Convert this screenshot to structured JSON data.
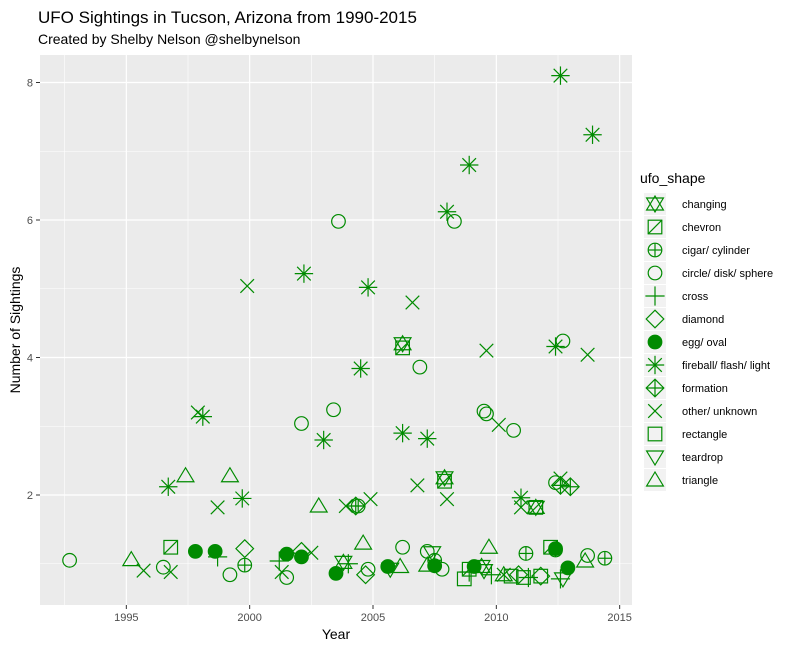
{
  "chart_data": {
    "type": "scatter",
    "title": "UFO Sightings in Tucson, Arizona from 1990-2015",
    "subtitle": "Created by Shelby Nelson @shelbynelson",
    "xlabel": "Year",
    "ylabel": "Number of Sightings",
    "xlim": [
      1991.5,
      2015.5
    ],
    "ylim": [
      0.4,
      8.4
    ],
    "x_ticks": [
      1995,
      2000,
      2005,
      2010,
      2015
    ],
    "y_ticks": [
      2,
      4,
      6,
      8
    ],
    "grid": true,
    "legend": {
      "title": "ufo_shape",
      "position": "right"
    },
    "marker_color": "#008B00",
    "panel_color": "#EBEBEB",
    "shapes": [
      "changing",
      "chevron",
      "cigar/ cylinder",
      "circle/ disk/ sphere",
      "cross",
      "diamond",
      "egg/ oval",
      "fireball/ flash/ light",
      "formation",
      "other/ unknown",
      "rectangle",
      "teardrop",
      "triangle"
    ],
    "series": [
      {
        "name": "changing",
        "points": [
          [
            2006.2,
            4.2
          ],
          [
            2007.9,
            2.25
          ],
          [
            2011.6,
            1.82
          ],
          [
            2003.8,
            1.02
          ],
          [
            2009.4,
            0.96
          ]
        ]
      },
      {
        "name": "chevron",
        "points": [
          [
            1996.8,
            1.24
          ],
          [
            2006.2,
            4.14
          ],
          [
            2007.9,
            2.2
          ],
          [
            2011.6,
            1.82
          ],
          [
            2012.2,
            1.24
          ],
          [
            2008.9,
            0.92
          ]
        ]
      },
      {
        "name": "cigar/ cylinder",
        "points": [
          [
            2004.4,
            1.84
          ],
          [
            2011.2,
            1.15
          ],
          [
            2012.4,
            1.2
          ],
          [
            2014.4,
            1.08
          ],
          [
            1999.8,
            0.98
          ],
          [
            2007.5,
            1.05
          ]
        ]
      },
      {
        "name": "circle/ disk/ sphere",
        "points": [
          [
            1992.7,
            1.05
          ],
          [
            1996.5,
            0.95
          ],
          [
            1999.2,
            0.84
          ],
          [
            2001.5,
            0.8
          ],
          [
            2002.1,
            3.04
          ],
          [
            2003.4,
            3.24
          ],
          [
            2003.6,
            5.98
          ],
          [
            2004.8,
            0.92
          ],
          [
            2006.2,
            1.24
          ],
          [
            2006.9,
            3.86
          ],
          [
            2007.2,
            1.18
          ],
          [
            2008.3,
            5.98
          ],
          [
            2009.5,
            3.22
          ],
          [
            2009.6,
            3.18
          ],
          [
            2010.7,
            2.94
          ],
          [
            2012.4,
            2.18
          ],
          [
            2012.7,
            4.24
          ],
          [
            2013.7,
            1.12
          ],
          [
            2007.8,
            0.92
          ]
        ]
      },
      {
        "name": "cross",
        "points": [
          [
            1998.7,
            1.1
          ],
          [
            2001.2,
            1.04
          ],
          [
            2004.0,
            1.0
          ],
          [
            2008.9,
            0.88
          ],
          [
            2009.8,
            0.84
          ],
          [
            2011.3,
            0.8
          ],
          [
            2012.6,
            0.78
          ]
        ]
      },
      {
        "name": "diamond",
        "points": [
          [
            1999.8,
            1.22
          ],
          [
            2004.7,
            0.84
          ],
          [
            2002.1,
            1.18
          ],
          [
            2010.9,
            0.84
          ],
          [
            2011.8,
            0.82
          ]
        ]
      },
      {
        "name": "egg/ oval",
        "points": [
          [
            1997.8,
            1.18
          ],
          [
            1998.6,
            1.18
          ],
          [
            2001.5,
            1.14
          ],
          [
            2002.1,
            1.1
          ],
          [
            2003.5,
            0.86
          ],
          [
            2005.6,
            0.96
          ],
          [
            2007.5,
            0.97
          ],
          [
            2009.1,
            0.96
          ],
          [
            2012.4,
            1.22
          ],
          [
            2012.9,
            0.94
          ]
        ]
      },
      {
        "name": "fireball/ flash/ light",
        "points": [
          [
            1996.7,
            2.12
          ],
          [
            1998.1,
            3.14
          ],
          [
            1999.7,
            1.95
          ],
          [
            2002.2,
            5.22
          ],
          [
            2003.0,
            2.8
          ],
          [
            2004.5,
            3.84
          ],
          [
            2004.8,
            5.02
          ],
          [
            2006.2,
            2.9
          ],
          [
            2007.2,
            2.82
          ],
          [
            2008.0,
            6.12
          ],
          [
            2008.9,
            6.8
          ],
          [
            2011.0,
            1.96
          ],
          [
            2012.4,
            4.16
          ],
          [
            2012.6,
            8.1
          ],
          [
            2013.9,
            7.24
          ]
        ]
      },
      {
        "name": "formation",
        "points": [
          [
            2004.3,
            1.84
          ],
          [
            2012.6,
            2.14
          ],
          [
            2013.0,
            2.12
          ]
        ]
      },
      {
        "name": "other/ unknown",
        "points": [
          [
            1995.7,
            0.9
          ],
          [
            1996.8,
            0.88
          ],
          [
            1997.9,
            3.2
          ],
          [
            1998.7,
            1.82
          ],
          [
            1999.9,
            5.04
          ],
          [
            2001.3,
            0.88
          ],
          [
            2002.5,
            1.16
          ],
          [
            2003.9,
            1.84
          ],
          [
            2004.9,
            1.94
          ],
          [
            2006.6,
            4.8
          ],
          [
            2006.8,
            2.14
          ],
          [
            2008.0,
            1.94
          ],
          [
            2009.6,
            4.1
          ],
          [
            2010.1,
            3.02
          ],
          [
            2010.3,
            0.84
          ],
          [
            2011.0,
            1.82
          ],
          [
            2012.6,
            2.24
          ],
          [
            2013.7,
            4.04
          ]
        ]
      },
      {
        "name": "rectangle",
        "points": [
          [
            2008.7,
            0.78
          ],
          [
            2010.6,
            0.82
          ],
          [
            2011.1,
            0.8
          ],
          [
            2011.8,
            0.82
          ]
        ]
      },
      {
        "name": "teardrop",
        "points": [
          [
            2007.4,
            1.16
          ],
          [
            2012.7,
            0.78
          ],
          [
            2005.7,
            0.92
          ],
          [
            2009.5,
            0.9
          ]
        ]
      },
      {
        "name": "triangle",
        "points": [
          [
            1995.2,
            1.06
          ],
          [
            1997.4,
            2.28
          ],
          [
            1999.2,
            2.28
          ],
          [
            2002.8,
            1.84
          ],
          [
            2004.6,
            1.3
          ],
          [
            2007.2,
            0.98
          ],
          [
            2009.7,
            1.24
          ],
          [
            2010.3,
            0.84
          ],
          [
            2013.6,
            1.04
          ],
          [
            2006.1,
            0.96
          ]
        ]
      }
    ]
  }
}
